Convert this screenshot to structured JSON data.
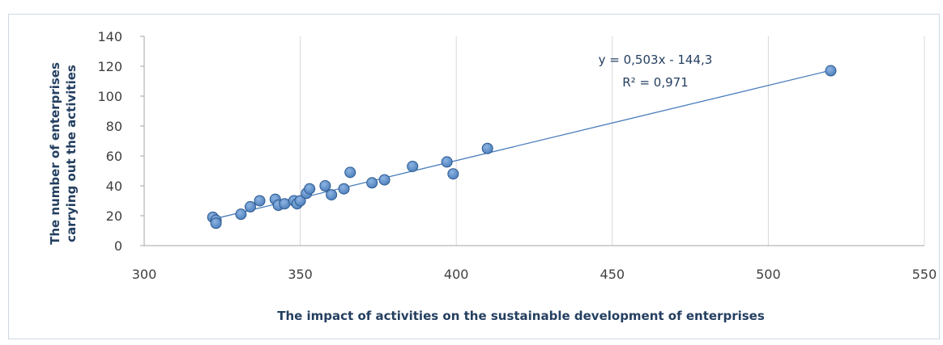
{
  "chart_data": {
    "type": "scatter",
    "xlabel": "The impact of activities on the sustainable development of enterprises",
    "ylabel": [
      "The number of enterprises",
      "carrying out the activities"
    ],
    "xlim": [
      300,
      550
    ],
    "ylim": [
      0,
      140
    ],
    "x_ticks": [
      "300",
      "350",
      "400",
      "450",
      "500",
      "550"
    ],
    "y_ticks": [
      "0",
      "20",
      "40",
      "60",
      "80",
      "100",
      "120",
      "140"
    ],
    "grid": "vertical",
    "points": [
      {
        "x": 322,
        "y": 19
      },
      {
        "x": 323,
        "y": 17
      },
      {
        "x": 323,
        "y": 15
      },
      {
        "x": 331,
        "y": 21
      },
      {
        "x": 334,
        "y": 26
      },
      {
        "x": 337,
        "y": 30
      },
      {
        "x": 342,
        "y": 31
      },
      {
        "x": 343,
        "y": 27
      },
      {
        "x": 345,
        "y": 28
      },
      {
        "x": 348,
        "y": 30
      },
      {
        "x": 349,
        "y": 28
      },
      {
        "x": 350,
        "y": 30
      },
      {
        "x": 352,
        "y": 35
      },
      {
        "x": 353,
        "y": 38
      },
      {
        "x": 358,
        "y": 40
      },
      {
        "x": 360,
        "y": 34
      },
      {
        "x": 364,
        "y": 38
      },
      {
        "x": 366,
        "y": 49
      },
      {
        "x": 373,
        "y": 42
      },
      {
        "x": 377,
        "y": 44
      },
      {
        "x": 386,
        "y": 53
      },
      {
        "x": 397,
        "y": 56
      },
      {
        "x": 399,
        "y": 48
      },
      {
        "x": 410,
        "y": 65
      },
      {
        "x": 520,
        "y": 117
      }
    ],
    "trendline": {
      "type": "linear",
      "slope": 0.503,
      "intercept": -144.3,
      "x_range": [
        322,
        520
      ],
      "equation_label": "y = 0,503x - 144,3",
      "r2_label": "R² = 0,971"
    },
    "colors": {
      "marker": "#4f81bd",
      "marker_stroke": "#2c5a8f",
      "trendline": "#4a7ebb",
      "grid": "#d9d9d9",
      "axis_title": "#243f60"
    }
  }
}
